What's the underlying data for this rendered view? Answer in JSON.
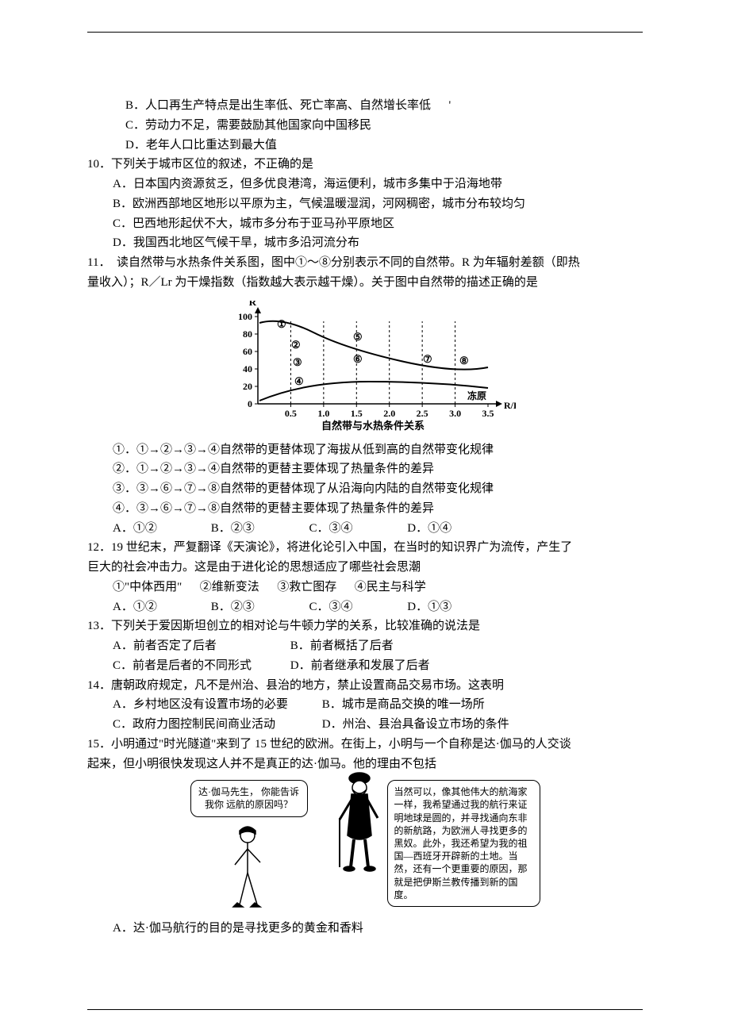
{
  "q9": {
    "B": "B．人口再生产特点是出生率低、死亡率高、自然增长率低      '",
    "C": "C．劳动力不足，需要鼓励其他国家向中国移民",
    "D": "D．老年人口比重达到最大值"
  },
  "q10": {
    "stem": "10．下列关于城市区位的叙述，不正确的是",
    "A": "A．日本国内资源贫乏，但多优良港湾，海运便利，城市多集中于沿海地带",
    "B": "B．欧洲西部地区地形以平原为主，气候温暖湿润，河网稠密，城市分布较均匀",
    "C": "C．巴西地形起伏不大，城市多分布于亚马孙平原地区",
    "D": "D．我国西北地区气候干旱，城市多沿河流分布"
  },
  "q11": {
    "stem1": "11．  读自然带与水热条件关系图，图中①～⑧分别表示不同的自然带。R 为年辐射差额（即热",
    "stem2": "量收入）；R／Lr 为干燥指数（指数越大表示越干燥）。关于图中自然带的描述正确的是",
    "chart": {
      "y_label": "R",
      "y_ticks": [
        "0",
        "20",
        "40",
        "60",
        "80",
        "100"
      ],
      "x_ticks": [
        "0.5",
        "1.0",
        "1.5",
        "2.0",
        "2.5",
        "3.0",
        "3.5"
      ],
      "x_axis_end": "R/Lr",
      "caption": "自然带与水热条件关系",
      "zones": [
        "①",
        "②",
        "③",
        "④",
        "⑤",
        "⑥",
        "⑦",
        "⑧"
      ],
      "tundra": "冻原",
      "stroke": "#000000",
      "bg": "#ffffff",
      "line_width": 1.5
    },
    "s1": "①．①→②→③→④自然带的更替体现了海拔从低到高的自然带变化规律",
    "s2": "②．①→②→③→④自然带的更替主要体现了热量条件的差异",
    "s3": "③．③→⑥→⑦→⑧自然带的更替体现了从沿海向内陆的自然带变化规律",
    "s4": "④．③→⑥→⑦→⑧自然带的更替主要体现了热量条件的差异",
    "opts": {
      "A": "A．①②",
      "B": "B．②③",
      "C": "C．③④",
      "D": "D．①④"
    }
  },
  "q12": {
    "stem1": "12．19 世纪末，严复翻译《天演论》，将进化论引入中国，在当时的知识界广为流传，产生了",
    "stem2": "巨大的社会冲击力。这是由于进化论的思想适应了哪些社会思潮",
    "items": "①\"中体西用\"      ②维新变法      ③救亡图存      ④民主与科学",
    "opts": {
      "A": "A．①②",
      "B": "B．②③",
      "C": "C．③④",
      "D": "D．①③"
    }
  },
  "q13": {
    "stem": "13．下列关于爱因斯坦创立的相对论与牛顿力学的关系，比较准确的说法是",
    "A": "A．前者否定了后者",
    "B": "B．前者概括了后者",
    "C": "C．前者是后者的不同形式",
    "D": "D．前者继承和发展了后者"
  },
  "q14": {
    "stem": "14．唐朝政府规定，凡不是州治、县治的地方，禁止设置商品交易市场。这表明",
    "A": "A．乡村地区没有设置市场的必要",
    "B": "B．城市是商品交换的唯一场所",
    "C": "C．政府力图控制民间商业活动",
    "D": "D．州治、县治具备设立市场的条件"
  },
  "q15": {
    "stem1": "15．小明通过\"时光隧道\"来到了 15 世纪的欧洲。在街上，小明与一个自称是达·伽马的人交谈",
    "stem2": "起来，但小明很快发现这人并不是真正的达·伽马。他的理由不包括",
    "bubble1": "达·伽马先生，\n你能告诉我你\n远航的原因吗？",
    "bubble2": "当然可以，像其他伟大的航海家一样，我希望通过我的航行来证明地球是圆的，并寻找通向东非的新航路，为欧洲人寻找更多的黑奴。此外，我还希望为我的祖国—西班牙开辟新的土地。当然，还有一个更重要的原因，那就是把伊斯兰教传播到新的国度。",
    "A": "A．达·伽马航行的目的是寻找更多的黄金和香料"
  }
}
